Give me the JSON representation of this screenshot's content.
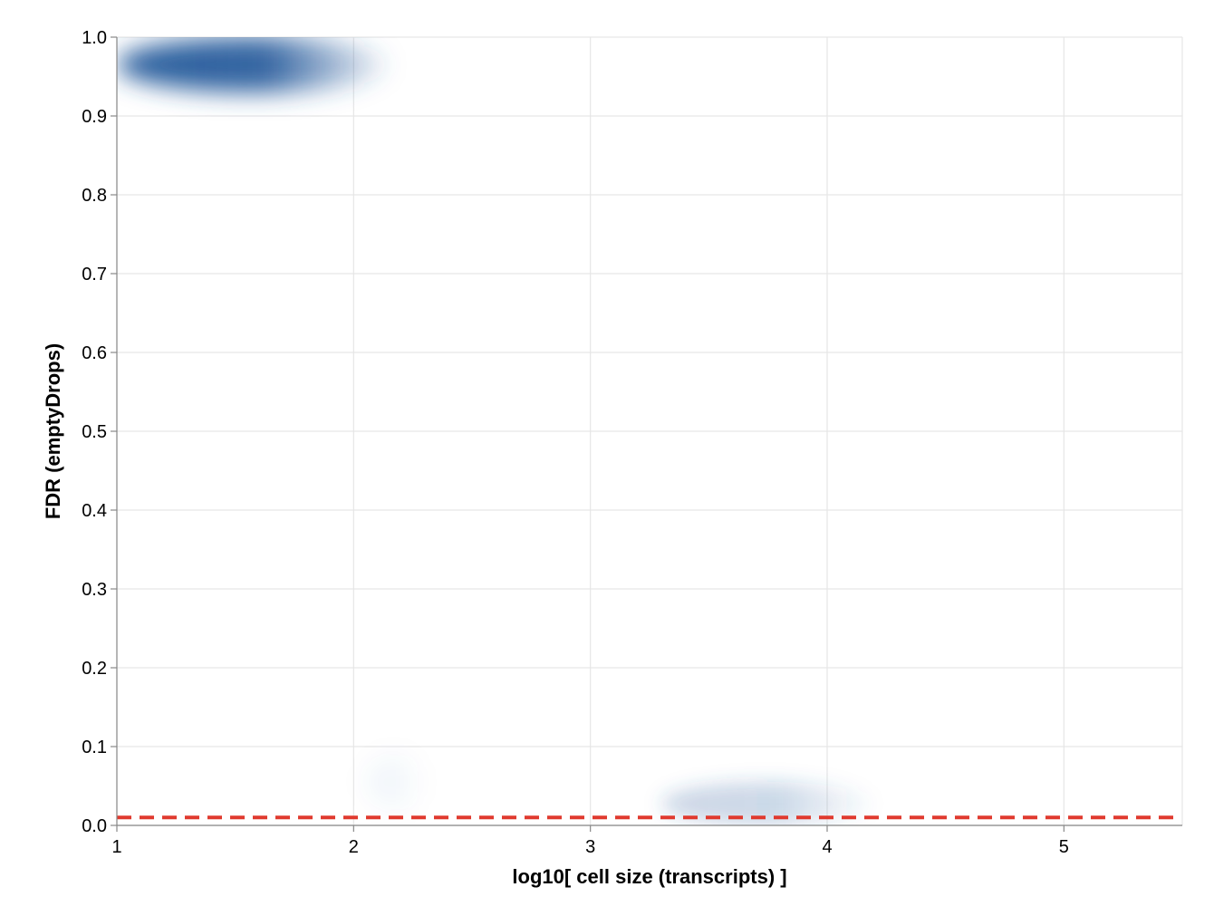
{
  "chart_data": {
    "type": "heatmap",
    "title": "",
    "xlabel": "log10[ cell size (transcripts) ]",
    "ylabel": "FDR (emptyDrops)",
    "xlim": [
      1,
      5.5
    ],
    "ylim": [
      0,
      1
    ],
    "x_ticks": [
      "1",
      "2",
      "3",
      "4",
      "5"
    ],
    "y_ticks": [
      "0.0",
      "0.1",
      "0.2",
      "0.3",
      "0.4",
      "0.5",
      "0.6",
      "0.7",
      "0.8",
      "0.9",
      "1.0"
    ],
    "grid": true,
    "density_color": "#2c5f9e",
    "density_regions": [
      {
        "x_range": [
          1.0,
          2.15
        ],
        "y_range": [
          0.93,
          1.0
        ],
        "intensity": 1.0
      },
      {
        "x_range": [
          2.05,
          2.3
        ],
        "y_range": [
          0.02,
          0.09
        ],
        "intensity": 0.05
      },
      {
        "x_range": [
          3.3,
          4.2
        ],
        "y_range": [
          0.0,
          0.055
        ],
        "intensity": 0.25
      }
    ],
    "threshold": {
      "y": 0.01,
      "color": "#e03a2f",
      "style": "dashed"
    }
  }
}
